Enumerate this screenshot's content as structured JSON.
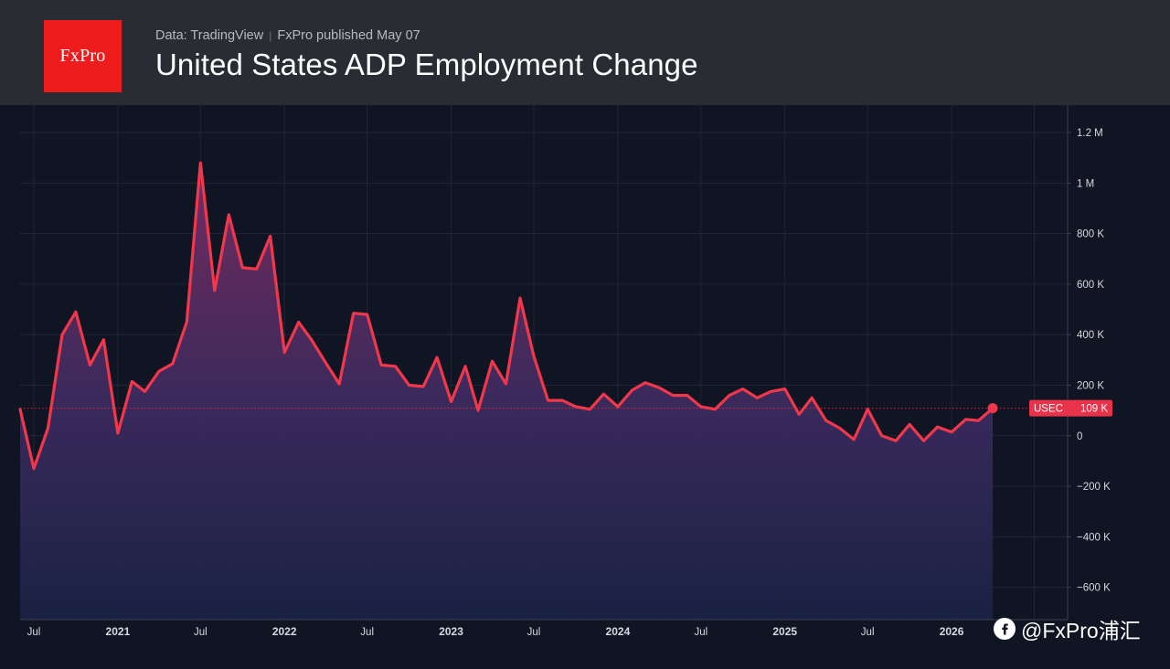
{
  "header": {
    "logo_text": "FxPro",
    "data_source": "Data: TradingView",
    "publisher": "FxPro published May 07",
    "title": "United States ADP Employment Change"
  },
  "watermark": {
    "icon": "weibo-icon",
    "text": "@FxPro浦汇"
  },
  "colors": {
    "background": "#101523",
    "header": "#2a2c33",
    "line": "#f0374b",
    "accent_red": "#ee1c1c",
    "grid": "#1f2636"
  },
  "chart_data": {
    "type": "area",
    "title": "United States ADP Employment Change",
    "xlabel": "",
    "ylabel": "",
    "ylim": [
      -700000,
      1300000
    ],
    "xlim": [
      "2020-06-01",
      "2026-08-01"
    ],
    "y_ticks": [
      {
        "value": 1200000,
        "label": "1.2 M"
      },
      {
        "value": 1000000,
        "label": "1 M"
      },
      {
        "value": 800000,
        "label": "800 K"
      },
      {
        "value": 600000,
        "label": "600 K"
      },
      {
        "value": 400000,
        "label": "400 K"
      },
      {
        "value": 200000,
        "label": "200 K"
      },
      {
        "value": 0,
        "label": "0"
      },
      {
        "value": -200000,
        "label": "−200 K"
      },
      {
        "value": -400000,
        "label": "−400 K"
      },
      {
        "value": -600000,
        "label": "−600 K"
      }
    ],
    "x_ticks": [
      {
        "date": "2020-07-01",
        "label": "Jul",
        "bold": false
      },
      {
        "date": "2021-01-01",
        "label": "2021",
        "bold": true
      },
      {
        "date": "2021-07-01",
        "label": "Jul",
        "bold": false
      },
      {
        "date": "2022-01-01",
        "label": "2022",
        "bold": true
      },
      {
        "date": "2022-07-01",
        "label": "Jul",
        "bold": false
      },
      {
        "date": "2023-01-01",
        "label": "2023",
        "bold": true
      },
      {
        "date": "2023-07-01",
        "label": "Jul",
        "bold": false
      },
      {
        "date": "2024-01-01",
        "label": "2024",
        "bold": true
      },
      {
        "date": "2024-07-01",
        "label": "Jul",
        "bold": false
      },
      {
        "date": "2025-01-01",
        "label": "2025",
        "bold": true
      },
      {
        "date": "2025-07-01",
        "label": "Jul",
        "bold": false
      },
      {
        "date": "2026-01-01",
        "label": "2026",
        "bold": true
      }
    ],
    "series": [
      {
        "name": "USEC",
        "x": [
          "2020-06",
          "2020-07",
          "2020-08",
          "2020-09",
          "2020-10",
          "2020-11",
          "2020-12",
          "2021-01",
          "2021-02",
          "2021-03",
          "2021-04",
          "2021-05",
          "2021-06",
          "2021-07",
          "2021-08",
          "2021-09",
          "2021-10",
          "2021-11",
          "2021-12",
          "2022-01",
          "2022-02",
          "2022-03",
          "2022-04",
          "2022-05",
          "2022-06",
          "2022-07",
          "2022-08",
          "2022-09",
          "2022-10",
          "2022-11",
          "2022-12",
          "2023-01",
          "2023-02",
          "2023-03",
          "2023-04",
          "2023-05",
          "2023-06",
          "2023-07",
          "2023-08",
          "2023-09",
          "2023-10",
          "2023-11",
          "2023-12",
          "2024-01",
          "2024-02",
          "2024-03",
          "2024-04",
          "2024-05",
          "2024-06",
          "2024-07",
          "2024-08",
          "2024-09",
          "2024-10",
          "2024-11",
          "2024-12",
          "2025-01",
          "2025-02",
          "2025-03",
          "2025-04",
          "2025-05",
          "2025-06",
          "2025-07",
          "2025-08",
          "2025-09",
          "2025-10",
          "2025-11",
          "2025-12",
          "2026-01",
          "2026-02",
          "2026-03",
          "2026-04"
        ],
        "values": [
          105000,
          -130000,
          30000,
          400000,
          490000,
          280000,
          380000,
          10000,
          215000,
          175000,
          255000,
          285000,
          450000,
          1080000,
          575000,
          875000,
          665000,
          660000,
          790000,
          330000,
          450000,
          380000,
          290000,
          205000,
          485000,
          480000,
          280000,
          275000,
          200000,
          195000,
          310000,
          135000,
          275000,
          100000,
          295000,
          205000,
          545000,
          315000,
          140000,
          140000,
          115000,
          105000,
          165000,
          115000,
          180000,
          210000,
          190000,
          160000,
          160000,
          115000,
          105000,
          160000,
          185000,
          150000,
          175000,
          185000,
          85000,
          150000,
          60000,
          30000,
          -15000,
          105000,
          0,
          -20000,
          45000,
          -20000,
          35000,
          15000,
          65000,
          60000,
          109000
        ]
      }
    ],
    "last_value_label": "109 K",
    "grid": true,
    "legend": "none"
  }
}
